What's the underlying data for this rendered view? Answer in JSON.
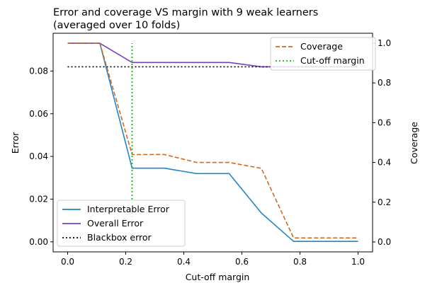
{
  "chart_data": {
    "type": "line",
    "title_lines": [
      "Error and coverage VS margin with 9 weak learners",
      "(averaged over 10 folds)"
    ],
    "xlabel": "Cut-off margin",
    "ylabel_left": "Error",
    "ylabel_right": "Coverage",
    "xlim": [
      -0.05,
      1.05
    ],
    "ylim_left": [
      -0.0047,
      0.0977
    ],
    "ylim_right": [
      -0.05,
      1.05
    ],
    "x_ticks": [
      "0.0",
      "0.2",
      "0.4",
      "0.6",
      "0.8",
      "1.0"
    ],
    "y_left_ticks": [
      "0.00",
      "0.02",
      "0.04",
      "0.06",
      "0.08"
    ],
    "y_right_ticks": [
      "0.0",
      "0.2",
      "0.4",
      "0.6",
      "0.8",
      "1.0"
    ],
    "x": [
      0.0,
      0.111,
      0.222,
      0.333,
      0.444,
      0.556,
      0.667,
      0.778,
      0.889,
      1.0
    ],
    "series": [
      {
        "name": "Interpretable Error",
        "axis": "left",
        "style": "solid",
        "color": "#1f86c8",
        "values": [
          0.093,
          0.093,
          0.0345,
          0.0345,
          0.032,
          0.032,
          0.0135,
          0.0002,
          0.0002,
          0.0002
        ]
      },
      {
        "name": "Overall Error",
        "axis": "left",
        "style": "solid",
        "color": "#7a3fc0",
        "values": [
          0.093,
          0.093,
          0.084,
          0.084,
          0.084,
          0.084,
          0.082,
          0.082,
          0.082,
          0.082
        ]
      },
      {
        "name": "Blackbox error",
        "axis": "left",
        "style": "dotted",
        "color": "#000000",
        "values": [
          0.082,
          0.082,
          0.082,
          0.082,
          0.082,
          0.082,
          0.082,
          0.082,
          0.082,
          0.082
        ]
      },
      {
        "name": "Coverage",
        "axis": "right",
        "style": "dashed",
        "color": "#d2691e",
        "values": [
          1.0,
          1.0,
          0.44,
          0.44,
          0.4,
          0.4,
          0.37,
          0.02,
          0.02,
          0.02
        ]
      },
      {
        "name": "Cut-off margin",
        "axis": "right",
        "style": "dotted",
        "color": "#22b422",
        "vertical_x": 0.222,
        "range": [
          0.0,
          1.0
        ]
      }
    ],
    "legend_left": [
      "Interpretable Error",
      "Overall Error",
      "Blackbox error"
    ],
    "legend_right": [
      "Coverage",
      "Cut-off margin"
    ],
    "legend_left_placement": "lower-left",
    "legend_right_placement": "upper-right",
    "grid": false
  }
}
